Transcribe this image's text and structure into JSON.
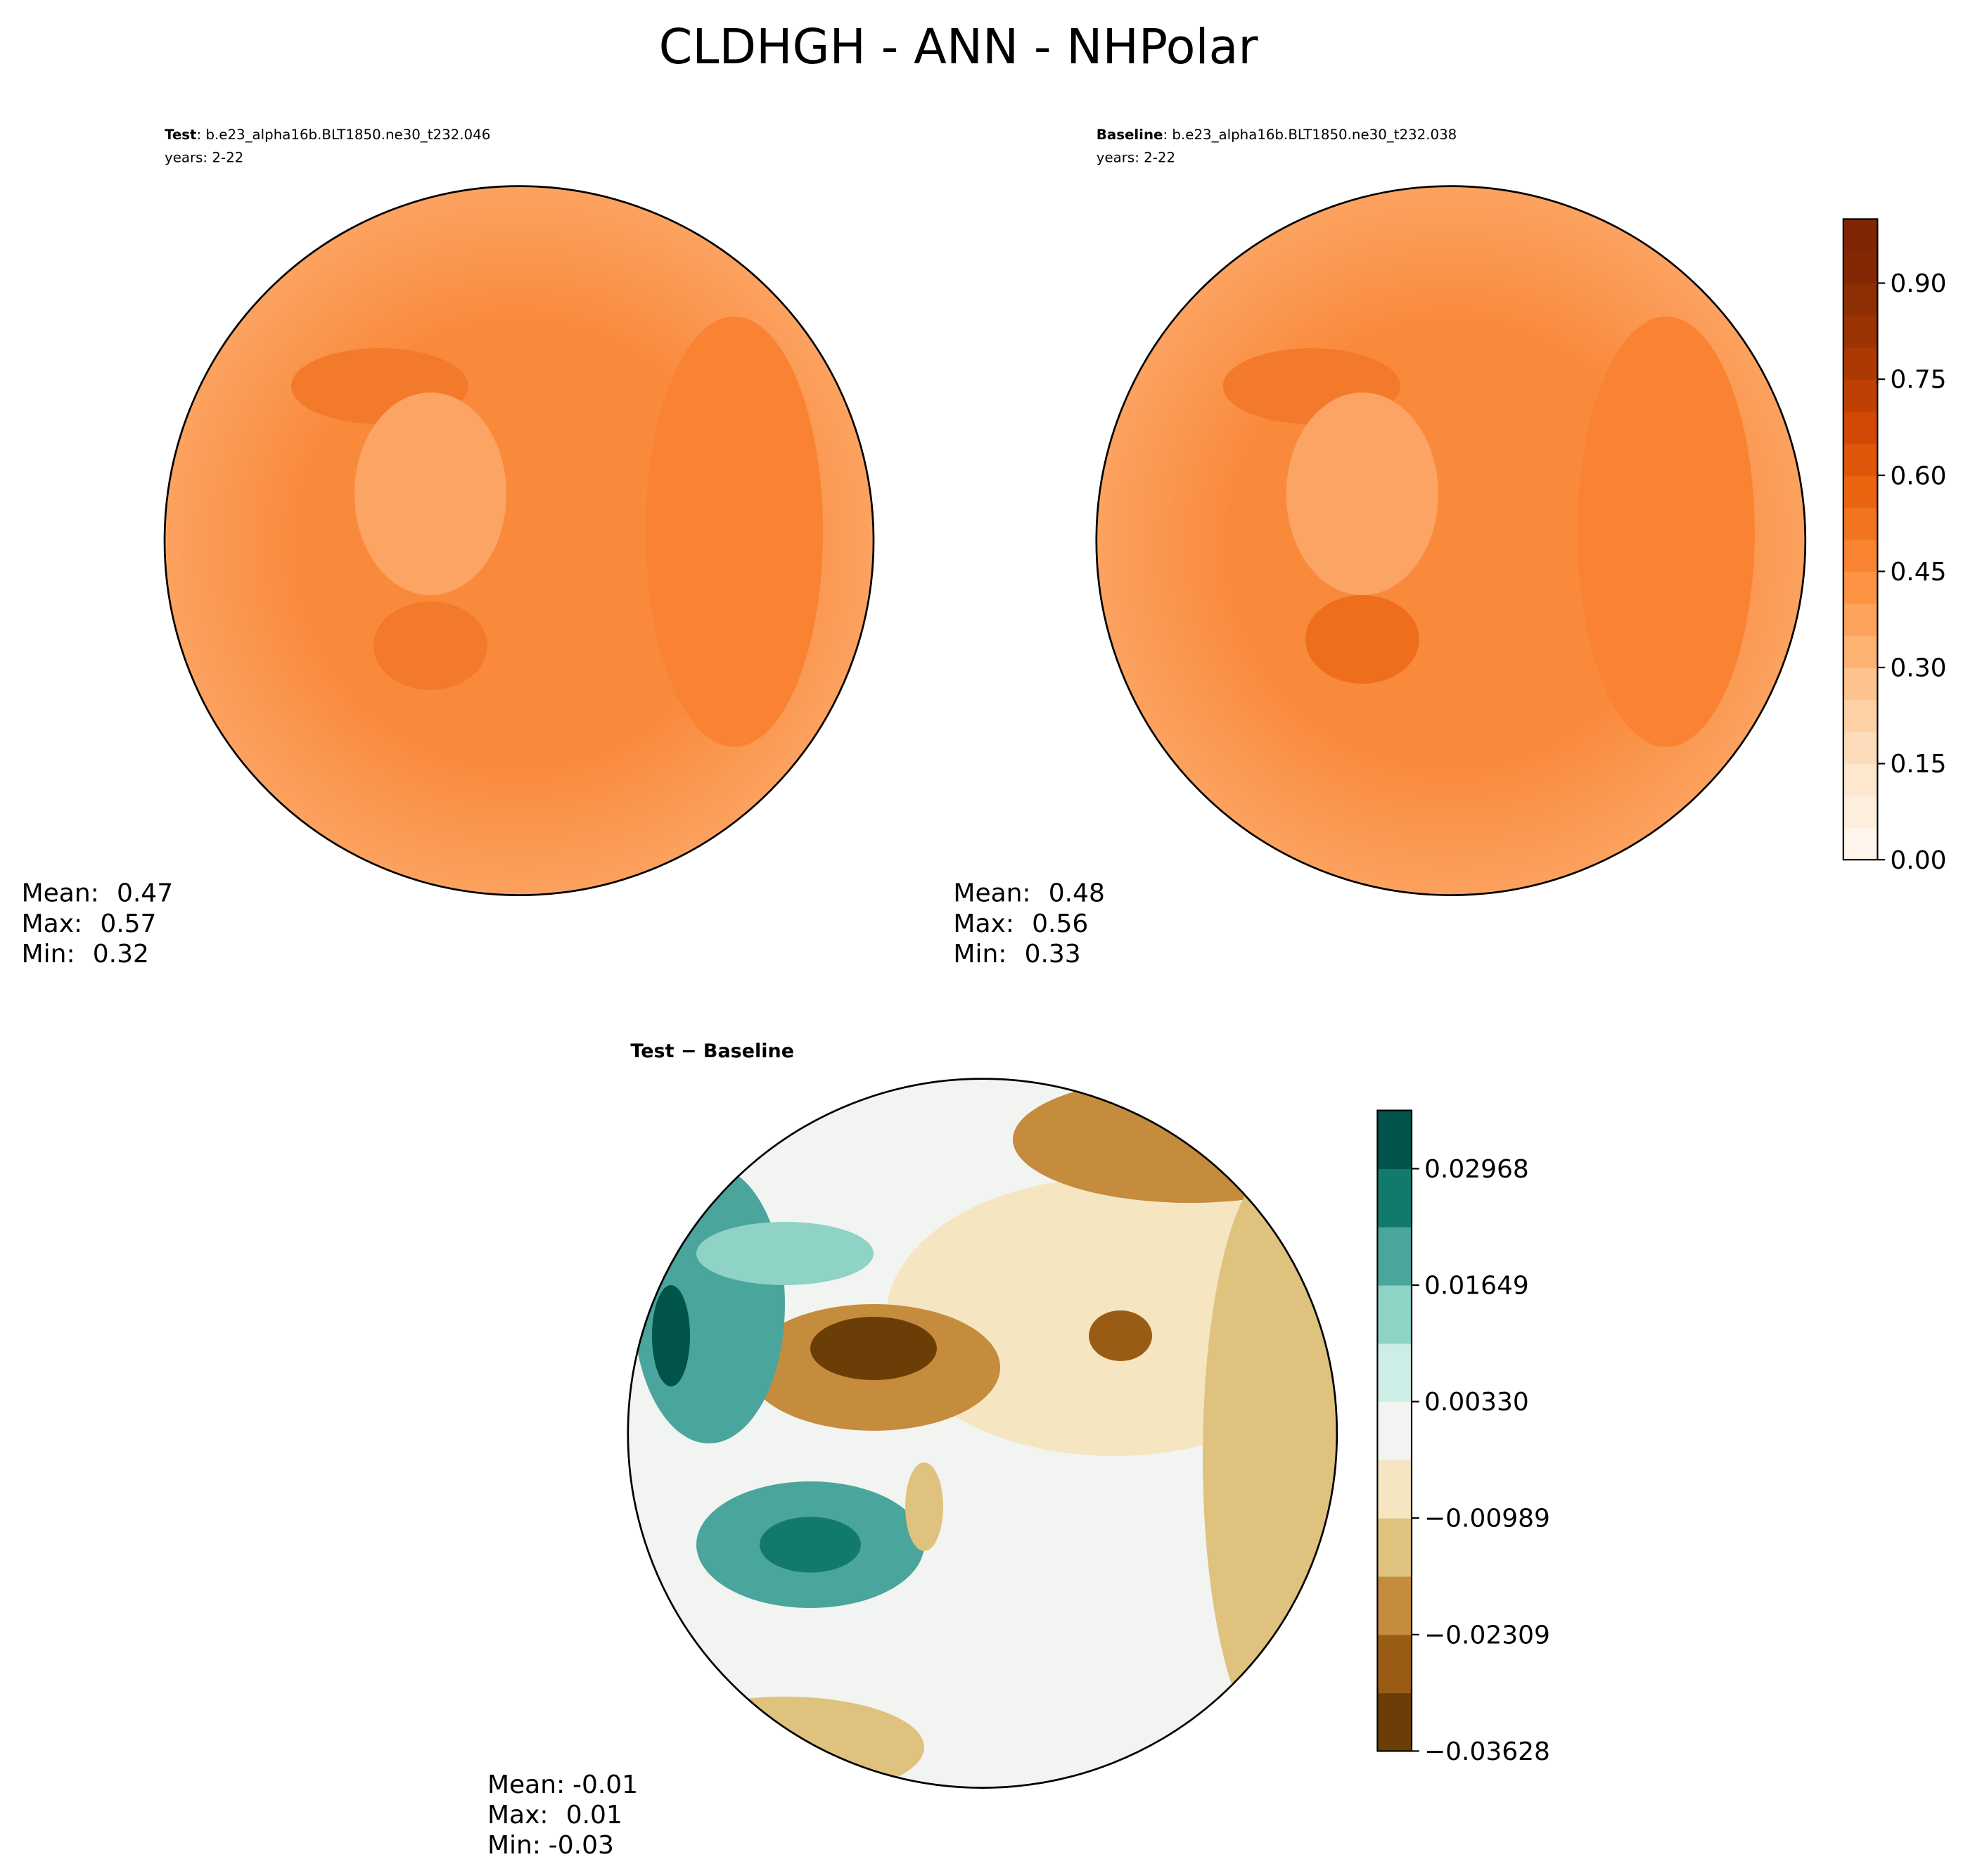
{
  "title": "CLDHGH - ANN - NHPolar",
  "chart_data": [
    {
      "type": "map",
      "label": "Test",
      "subtitle": ": b.e23_alpha16b.BLT1850.ne30_t232.046",
      "years": "years: 2-22",
      "stats": {
        "labels": [
          "Mean:",
          "Max:",
          "Min:"
        ],
        "values": [
          0.47,
          0.57,
          0.32
        ]
      }
    },
    {
      "type": "map",
      "label": "Baseline",
      "subtitle": ": b.e23_alpha16b.BLT1850.ne30_t232.038",
      "years": "years: 2-22",
      "stats": {
        "labels": [
          "Mean:",
          "Max:",
          "Min:"
        ],
        "values": [
          0.48,
          0.56,
          0.33
        ]
      },
      "clim": [
        0,
        1
      ],
      "colors": [
        "#fff5eb",
        "#feeedd",
        "#fee7cf",
        "#fddcbb",
        "#fdd1a5",
        "#fdc38d",
        "#fdb272",
        "#fda25a",
        "#fd9243",
        "#f98331",
        "#f3741f",
        "#ea6410",
        "#de560a",
        "#d14905",
        "#bf4002",
        "#ac3903",
        "#9b3303",
        "#8e2f03",
        "#822804",
        "#7f2704"
      ],
      "cticks": [
        {
          "value": 0,
          "label": "0.00"
        },
        {
          "value": 0.15,
          "label": "0.15"
        },
        {
          "value": 0.3,
          "label": "0.30"
        },
        {
          "value": 0.45,
          "label": "0.45"
        },
        {
          "value": 0.6,
          "label": "0.60"
        },
        {
          "value": 0.75,
          "label": "0.75"
        },
        {
          "value": 0.9,
          "label": "0.90"
        }
      ]
    },
    {
      "type": "map",
      "label": "Test − Baseline",
      "stats": {
        "labels": [
          "Mean:",
          "Max:",
          "Min:"
        ],
        "values": [
          -0.01,
          0.01,
          -0.03
        ]
      },
      "clim": [
        -0.03628,
        0.03628
      ],
      "colors": [
        "#6b3e07",
        "#9a5c14",
        "#c48c3c",
        "#dfc27d",
        "#f5e6c1",
        "#f2f4f2",
        "#cdeee6",
        "#8fd2c6",
        "#4aa59c",
        "#127a6d",
        "#00544a"
      ],
      "cticks": [
        {
          "value": -0.03628,
          "label": "−0.03628"
        },
        {
          "value": -0.02309,
          "label": "−0.02309"
        },
        {
          "value": -0.00989,
          "label": "−0.00989"
        },
        {
          "value": 0.0033,
          "label": "0.00330"
        },
        0.01649,
        0.02968
      ]
    }
  ]
}
